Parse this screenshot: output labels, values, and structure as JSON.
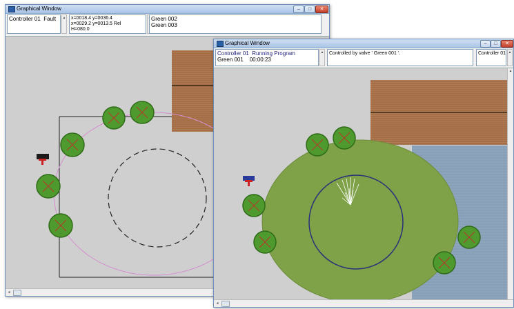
{
  "window1": {
    "title": "Graphical Window",
    "buttons": {
      "minimize": "–",
      "maximize": "□",
      "close": "✕"
    },
    "status": {
      "controller": "Controller 01",
      "state": "Fault"
    },
    "coords": {
      "line1": "x=0018.4   y=0036.4",
      "line2": "x=0029.2   y=0013.5 Rel",
      "line3": "H=080.0"
    },
    "zones": [
      "Green 002",
      "Green 003"
    ]
  },
  "window2": {
    "title": "Graphical Window",
    "buttons": {
      "minimize": "–",
      "maximize": "□",
      "close": "✕"
    },
    "status": {
      "controller": "Controller 01",
      "state": "Running Program",
      "zone": "Green 001",
      "time": "00:00:23"
    },
    "message": "Controlled by valve ' Green 001 '.",
    "right_label": "Controller 01"
  },
  "colors": {
    "canvas": "#cfcfcf",
    "deck": "#b07a52",
    "deck_grain": "#8f5b38",
    "tree_leaf": "#4e9a2e",
    "tree_dark": "#2f6b18",
    "trunk": "#b0402a",
    "lawn": "#7fa248",
    "water": "#8da4bd",
    "boundary": "#d58ed0",
    "sprinkler_ring": "#2b2f7a",
    "controller_red": "#cc2222",
    "controller_blue": "#2a3a9a"
  },
  "icons": [
    "minimize-icon",
    "maximize-icon",
    "close-icon",
    "scroll-arrow-icon",
    "controller-icon",
    "tree-icon",
    "sprinkler-spray-icon"
  ]
}
